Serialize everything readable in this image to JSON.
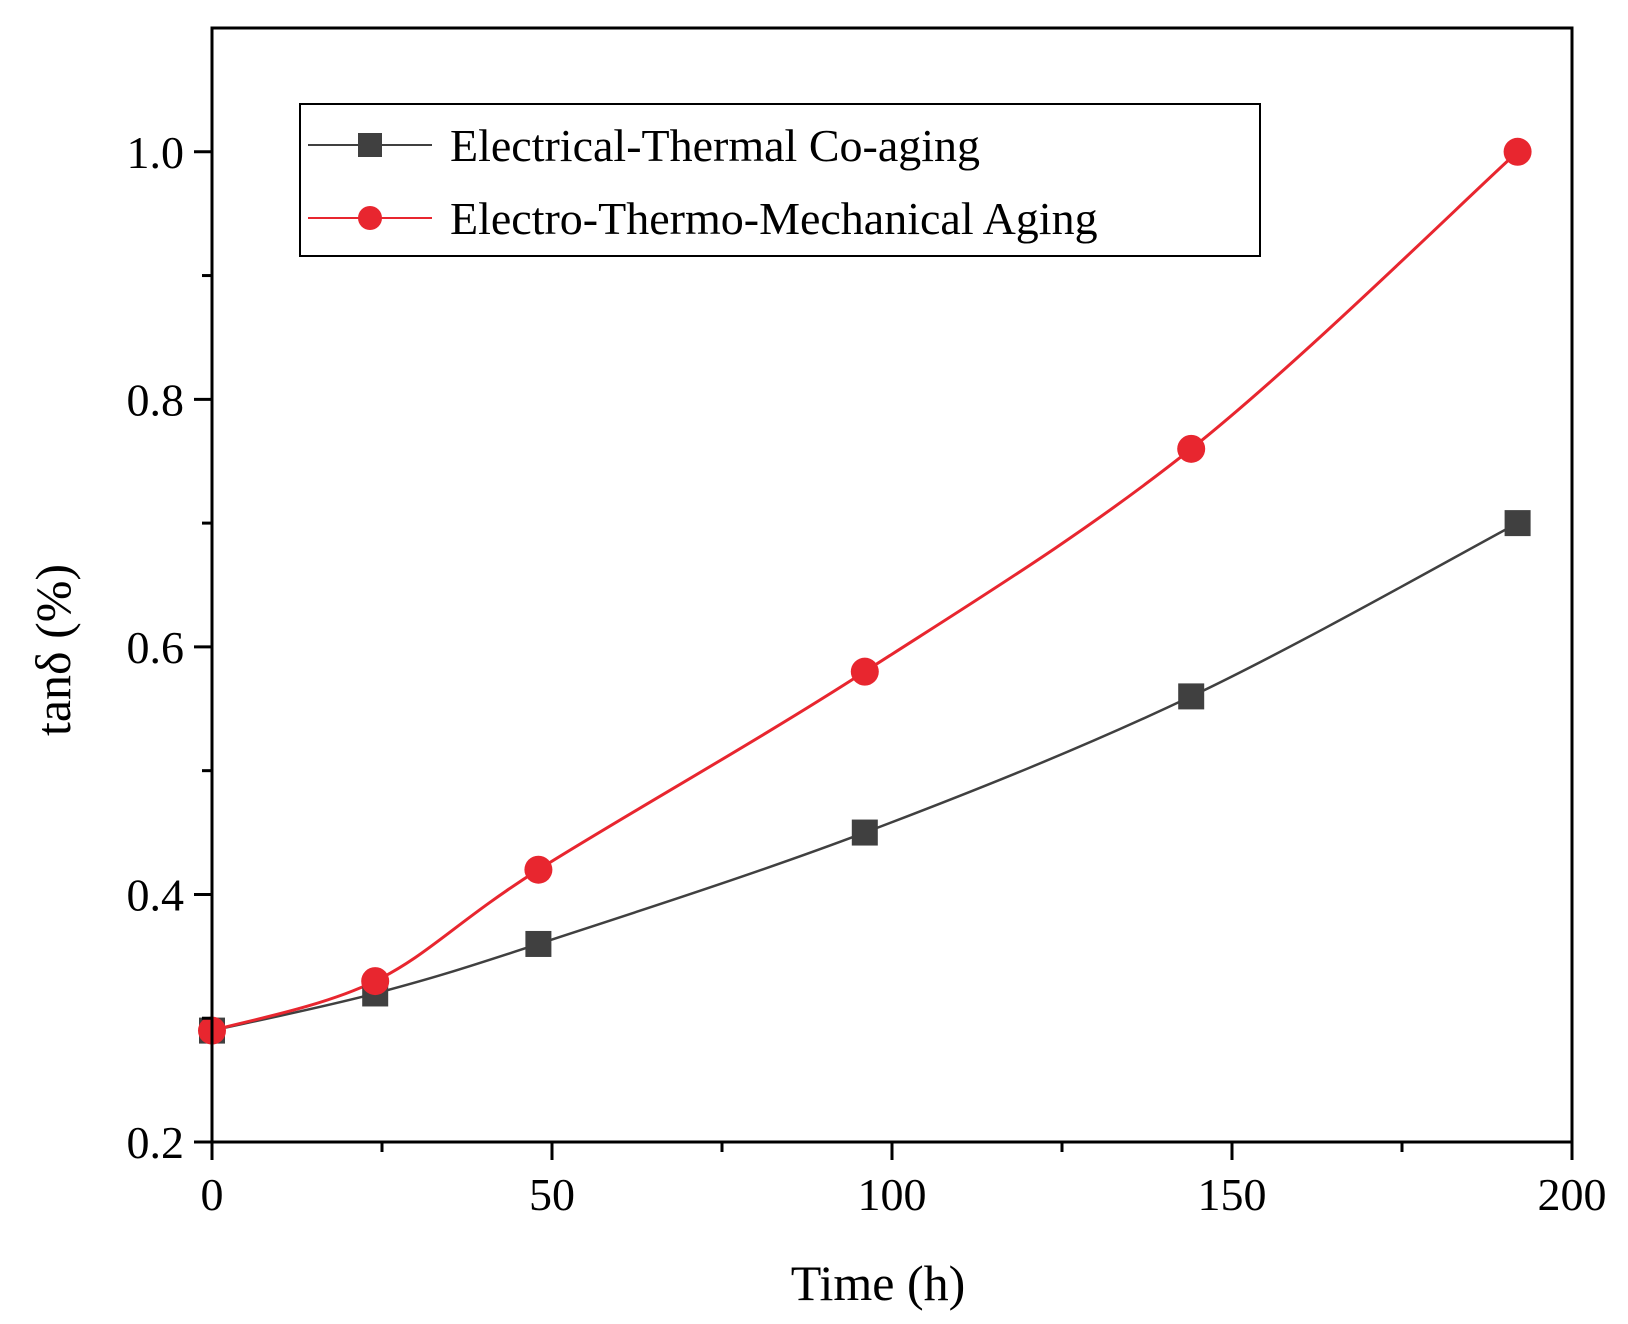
{
  "chart_data": {
    "type": "line",
    "title": "",
    "xlabel": "Time (h)",
    "ylabel": "tanδ  (%)",
    "xlim": [
      0,
      200
    ],
    "ylim": [
      0.2,
      1.1
    ],
    "x_major_ticks": [
      0,
      50,
      100,
      150,
      200
    ],
    "x_minor_ticks": [
      25,
      75,
      125,
      175
    ],
    "y_major_ticks": [
      0.2,
      0.4,
      0.6,
      0.8,
      1.0
    ],
    "y_minor_ticks": [
      0.3,
      0.5,
      0.7,
      0.9
    ],
    "x_tick_labels": [
      "0",
      "50",
      "100",
      "150",
      "200"
    ],
    "y_tick_labels": [
      "0.2",
      "0.4",
      "0.6",
      "0.8",
      "1.0"
    ],
    "grid": false,
    "legend_position": "top-left",
    "series": [
      {
        "name": "Electrical-Thermal Co-aging",
        "color": "#404040",
        "marker": "square",
        "x": [
          0,
          24,
          48,
          96,
          144,
          192
        ],
        "values": [
          0.29,
          0.32,
          0.36,
          0.45,
          0.56,
          0.7
        ]
      },
      {
        "name": "Electro-Thermo-Mechanical Aging",
        "color": "#e8262f",
        "marker": "circle",
        "x": [
          0,
          24,
          48,
          96,
          144,
          192
        ],
        "values": [
          0.29,
          0.33,
          0.42,
          0.58,
          0.76,
          1.0
        ]
      }
    ]
  }
}
